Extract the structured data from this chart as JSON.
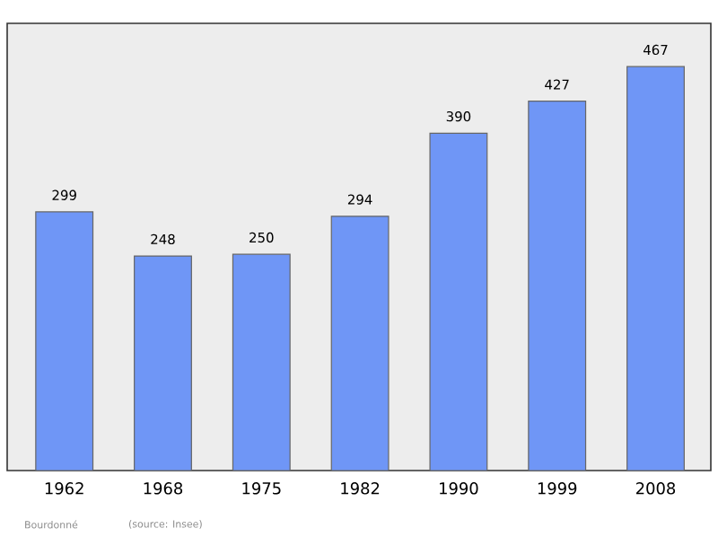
{
  "chart_data": {
    "type": "bar",
    "categories": [
      "1962",
      "1968",
      "1975",
      "1982",
      "1990",
      "1999",
      "2008"
    ],
    "values": [
      299,
      248,
      250,
      294,
      390,
      427,
      467
    ],
    "color": "#6f96f6",
    "data_labels": true,
    "annotations": [
      "Bourdonné",
      "(source: Insee)"
    ]
  }
}
